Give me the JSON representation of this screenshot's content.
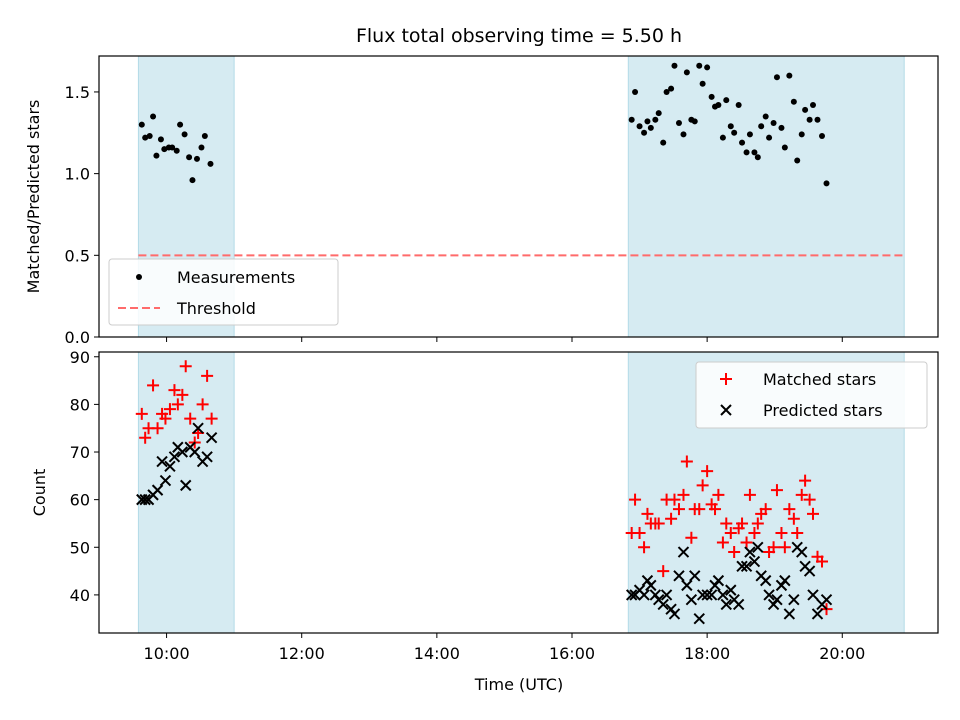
{
  "chart_data": [
    {
      "type": "scatter",
      "title": "Flux total observing time = 5.50 h",
      "xlabel": "",
      "ylabel": "Matched/Predicted stars",
      "xlim": [
        "09:00",
        "21:25"
      ],
      "ylim": [
        0,
        1.72
      ],
      "yticks": [
        "0.0",
        "0.5",
        "1.0",
        "1.5"
      ],
      "shaded_intervals": [
        [
          "09:35",
          "11:00"
        ],
        [
          "16:50",
          "20:55"
        ]
      ],
      "shade_color": "#add8e6",
      "threshold": {
        "name": "Threshold",
        "value": 0.5,
        "from": "09:35",
        "to": "20:55",
        "color": "#ff6b6b"
      },
      "legend": {
        "placement": "lower-left",
        "entries": [
          "Measurements",
          "Threshold"
        ]
      },
      "series": [
        {
          "name": "Measurements",
          "color": "#000000",
          "marker": "dot",
          "points": [
            [
              "09:38",
              1.3
            ],
            [
              "09:41",
              1.22
            ],
            [
              "09:45",
              1.23
            ],
            [
              "09:48",
              1.35
            ],
            [
              "09:51",
              1.11
            ],
            [
              "09:55",
              1.21
            ],
            [
              "09:58",
              1.15
            ],
            [
              "10:02",
              1.16
            ],
            [
              "10:05",
              1.16
            ],
            [
              "10:09",
              1.14
            ],
            [
              "10:12",
              1.3
            ],
            [
              "10:16",
              1.24
            ],
            [
              "10:20",
              1.1
            ],
            [
              "10:23",
              0.96
            ],
            [
              "10:27",
              1.09
            ],
            [
              "10:31",
              1.16
            ],
            [
              "10:34",
              1.23
            ],
            [
              "10:39",
              1.06
            ],
            [
              "16:53",
              1.33
            ],
            [
              "16:56",
              1.5
            ],
            [
              "17:00",
              1.29
            ],
            [
              "17:04",
              1.25
            ],
            [
              "17:07",
              1.32
            ],
            [
              "17:10",
              1.28
            ],
            [
              "17:14",
              1.33
            ],
            [
              "17:17",
              1.37
            ],
            [
              "17:21",
              1.19
            ],
            [
              "17:24",
              1.5
            ],
            [
              "17:28",
              1.52
            ],
            [
              "17:31",
              1.66
            ],
            [
              "17:35",
              1.31
            ],
            [
              "17:39",
              1.24
            ],
            [
              "17:42",
              1.62
            ],
            [
              "17:46",
              1.33
            ],
            [
              "17:49",
              1.32
            ],
            [
              "17:53",
              1.66
            ],
            [
              "17:56",
              1.55
            ],
            [
              "18:00",
              1.65
            ],
            [
              "18:04",
              1.47
            ],
            [
              "18:07",
              1.41
            ],
            [
              "18:10",
              1.42
            ],
            [
              "18:14",
              1.22
            ],
            [
              "18:17",
              1.45
            ],
            [
              "18:21",
              1.29
            ],
            [
              "18:24",
              1.25
            ],
            [
              "18:28",
              1.42
            ],
            [
              "18:31",
              1.19
            ],
            [
              "18:35",
              1.13
            ],
            [
              "18:38",
              1.24
            ],
            [
              "18:42",
              1.13
            ],
            [
              "18:45",
              1.1
            ],
            [
              "18:48",
              1.29
            ],
            [
              "18:52",
              1.35
            ],
            [
              "18:55",
              1.22
            ],
            [
              "18:59",
              1.31
            ],
            [
              "19:02",
              1.59
            ],
            [
              "19:06",
              1.28
            ],
            [
              "19:09",
              1.16
            ],
            [
              "19:13",
              1.6
            ],
            [
              "19:17",
              1.44
            ],
            [
              "19:20",
              1.08
            ],
            [
              "19:24",
              1.24
            ],
            [
              "19:27",
              1.39
            ],
            [
              "19:31",
              1.33
            ],
            [
              "19:34",
              1.42
            ],
            [
              "19:38",
              1.33
            ],
            [
              "19:42",
              1.23
            ],
            [
              "19:46",
              0.94
            ]
          ]
        }
      ]
    },
    {
      "type": "scatter",
      "title": "",
      "xlabel": "Time (UTC)",
      "ylabel": "Count",
      "xlim": [
        "09:00",
        "21:25"
      ],
      "ylim": [
        32,
        91
      ],
      "xticks": [
        "10:00",
        "12:00",
        "14:00",
        "16:00",
        "18:00",
        "20:00"
      ],
      "yticks": [
        "40",
        "50",
        "60",
        "70",
        "80",
        "90"
      ],
      "shaded_intervals": [
        [
          "09:35",
          "11:00"
        ],
        [
          "16:50",
          "20:55"
        ]
      ],
      "legend": {
        "placement": "top-right",
        "entries": [
          "Matched stars",
          "Predicted stars"
        ]
      },
      "series": [
        {
          "name": "Matched stars",
          "color": "#ff0000",
          "marker": "plus",
          "points": [
            [
              "09:38",
              78
            ],
            [
              "09:41",
              73
            ],
            [
              "09:44",
              75
            ],
            [
              "09:48",
              84
            ],
            [
              "09:52",
              75
            ],
            [
              "09:56",
              78
            ],
            [
              "09:59",
              77
            ],
            [
              "10:03",
              79
            ],
            [
              "10:07",
              83
            ],
            [
              "10:10",
              80
            ],
            [
              "10:14",
              82
            ],
            [
              "10:17",
              88
            ],
            [
              "10:21",
              77
            ],
            [
              "10:25",
              72
            ],
            [
              "10:28",
              74
            ],
            [
              "10:32",
              80
            ],
            [
              "10:36",
              86
            ],
            [
              "10:40",
              77
            ],
            [
              "16:53",
              53
            ],
            [
              "16:56",
              60
            ],
            [
              "17:00",
              53
            ],
            [
              "17:04",
              50
            ],
            [
              "17:07",
              57
            ],
            [
              "17:10",
              55
            ],
            [
              "17:14",
              55
            ],
            [
              "17:17",
              55
            ],
            [
              "17:21",
              45
            ],
            [
              "17:24",
              60
            ],
            [
              "17:28",
              56
            ],
            [
              "17:31",
              60
            ],
            [
              "17:35",
              58
            ],
            [
              "17:39",
              61
            ],
            [
              "17:42",
              68
            ],
            [
              "17:46",
              52
            ],
            [
              "17:49",
              58
            ],
            [
              "17:53",
              58
            ],
            [
              "17:56",
              63
            ],
            [
              "18:00",
              66
            ],
            [
              "18:04",
              59
            ],
            [
              "18:07",
              58
            ],
            [
              "18:10",
              61
            ],
            [
              "18:14",
              51
            ],
            [
              "18:17",
              55
            ],
            [
              "18:21",
              53
            ],
            [
              "18:24",
              49
            ],
            [
              "18:28",
              54
            ],
            [
              "18:31",
              55
            ],
            [
              "18:35",
              51
            ],
            [
              "18:38",
              61
            ],
            [
              "18:42",
              53
            ],
            [
              "18:45",
              55
            ],
            [
              "18:48",
              57
            ],
            [
              "18:52",
              58
            ],
            [
              "18:55",
              49
            ],
            [
              "18:59",
              50
            ],
            [
              "19:02",
              62
            ],
            [
              "19:06",
              53
            ],
            [
              "19:09",
              50
            ],
            [
              "19:13",
              58
            ],
            [
              "19:17",
              56
            ],
            [
              "19:20",
              53
            ],
            [
              "19:24",
              61
            ],
            [
              "19:27",
              64
            ],
            [
              "19:31",
              60
            ],
            [
              "19:34",
              57
            ],
            [
              "19:38",
              48
            ],
            [
              "19:42",
              47
            ],
            [
              "19:46",
              37
            ]
          ]
        },
        {
          "name": "Predicted stars",
          "color": "#000000",
          "marker": "x",
          "points": [
            [
              "09:38",
              60
            ],
            [
              "09:41",
              60
            ],
            [
              "09:44",
              60
            ],
            [
              "09:48",
              61
            ],
            [
              "09:52",
              62
            ],
            [
              "09:56",
              68
            ],
            [
              "09:59",
              64
            ],
            [
              "10:03",
              67
            ],
            [
              "10:07",
              69
            ],
            [
              "10:10",
              71
            ],
            [
              "10:14",
              70
            ],
            [
              "10:17",
              63
            ],
            [
              "10:21",
              71
            ],
            [
              "10:25",
              70
            ],
            [
              "10:28",
              75
            ],
            [
              "10:32",
              68
            ],
            [
              "10:36",
              69
            ],
            [
              "10:40",
              73
            ],
            [
              "16:53",
              40
            ],
            [
              "16:56",
              40
            ],
            [
              "17:00",
              41
            ],
            [
              "17:04",
              40
            ],
            [
              "17:07",
              43
            ],
            [
              "17:10",
              42
            ],
            [
              "17:14",
              40
            ],
            [
              "17:17",
              39
            ],
            [
              "17:21",
              38
            ],
            [
              "17:24",
              40
            ],
            [
              "17:28",
              37
            ],
            [
              "17:31",
              36
            ],
            [
              "17:35",
              44
            ],
            [
              "17:39",
              49
            ],
            [
              "17:42",
              42
            ],
            [
              "17:46",
              39
            ],
            [
              "17:49",
              44
            ],
            [
              "17:53",
              35
            ],
            [
              "17:56",
              40
            ],
            [
              "18:00",
              40
            ],
            [
              "18:04",
              40
            ],
            [
              "18:07",
              42
            ],
            [
              "18:10",
              43
            ],
            [
              "18:14",
              40
            ],
            [
              "18:17",
              38
            ],
            [
              "18:21",
              41
            ],
            [
              "18:24",
              39
            ],
            [
              "18:28",
              38
            ],
            [
              "18:31",
              46
            ],
            [
              "18:35",
              46
            ],
            [
              "18:38",
              49
            ],
            [
              "18:42",
              47
            ],
            [
              "18:45",
              50
            ],
            [
              "18:48",
              44
            ],
            [
              "18:52",
              43
            ],
            [
              "18:55",
              40
            ],
            [
              "18:59",
              38
            ],
            [
              "19:02",
              39
            ],
            [
              "19:06",
              42
            ],
            [
              "19:09",
              43
            ],
            [
              "19:13",
              36
            ],
            [
              "19:17",
              39
            ],
            [
              "19:20",
              50
            ],
            [
              "19:24",
              49
            ],
            [
              "19:27",
              46
            ],
            [
              "19:31",
              45
            ],
            [
              "19:34",
              40
            ],
            [
              "19:38",
              36
            ],
            [
              "19:42",
              38
            ],
            [
              "19:46",
              39
            ]
          ]
        }
      ]
    }
  ]
}
